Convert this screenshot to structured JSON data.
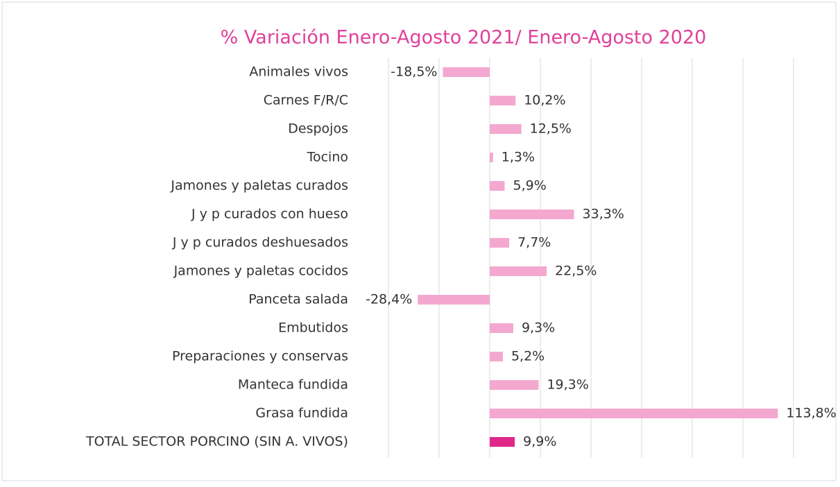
{
  "chart_data": {
    "type": "barh",
    "title": "% Variación Enero-Agosto 2021/ Enero-Agosto 2020",
    "categories": [
      "Animales vivos",
      "Carnes F/R/C",
      "Despojos",
      "Tocino",
      "Jamones y paletas curados",
      "J y p curados con hueso",
      "J y p curados deshuesados",
      "Jamones y paletas cocidos",
      "Panceta salada",
      "Embutidos",
      "Preparaciones y conservas",
      "Manteca fundida",
      "Grasa fundida",
      "TOTAL SECTOR PORCINO (SIN A. VIVOS)"
    ],
    "values": [
      -18.5,
      10.2,
      12.5,
      1.3,
      5.9,
      33.3,
      7.7,
      22.5,
      -28.4,
      9.3,
      5.2,
      19.3,
      113.8,
      9.9
    ],
    "value_labels": [
      "-18,5%",
      "10,2%",
      "12,5%",
      "1,3%",
      "5,9%",
      "33,3%",
      "7,7%",
      "22,5%",
      "-28,4%",
      "9,3%",
      "5,2%",
      "19,3%",
      "113,8%",
      "9,9%"
    ],
    "colors": [
      "#f4a8cf",
      "#f4a8cf",
      "#f4a8cf",
      "#f4a8cf",
      "#f4a8cf",
      "#f4a8cf",
      "#f4a8cf",
      "#f4a8cf",
      "#f4a8cf",
      "#f4a8cf",
      "#f4a8cf",
      "#f4a8cf",
      "#f4a8cf",
      "#e0288a"
    ],
    "xlim": [
      -40,
      120
    ],
    "xticks": [
      -40,
      -20,
      0,
      20,
      40,
      60,
      80,
      100,
      120
    ],
    "grid": true
  }
}
